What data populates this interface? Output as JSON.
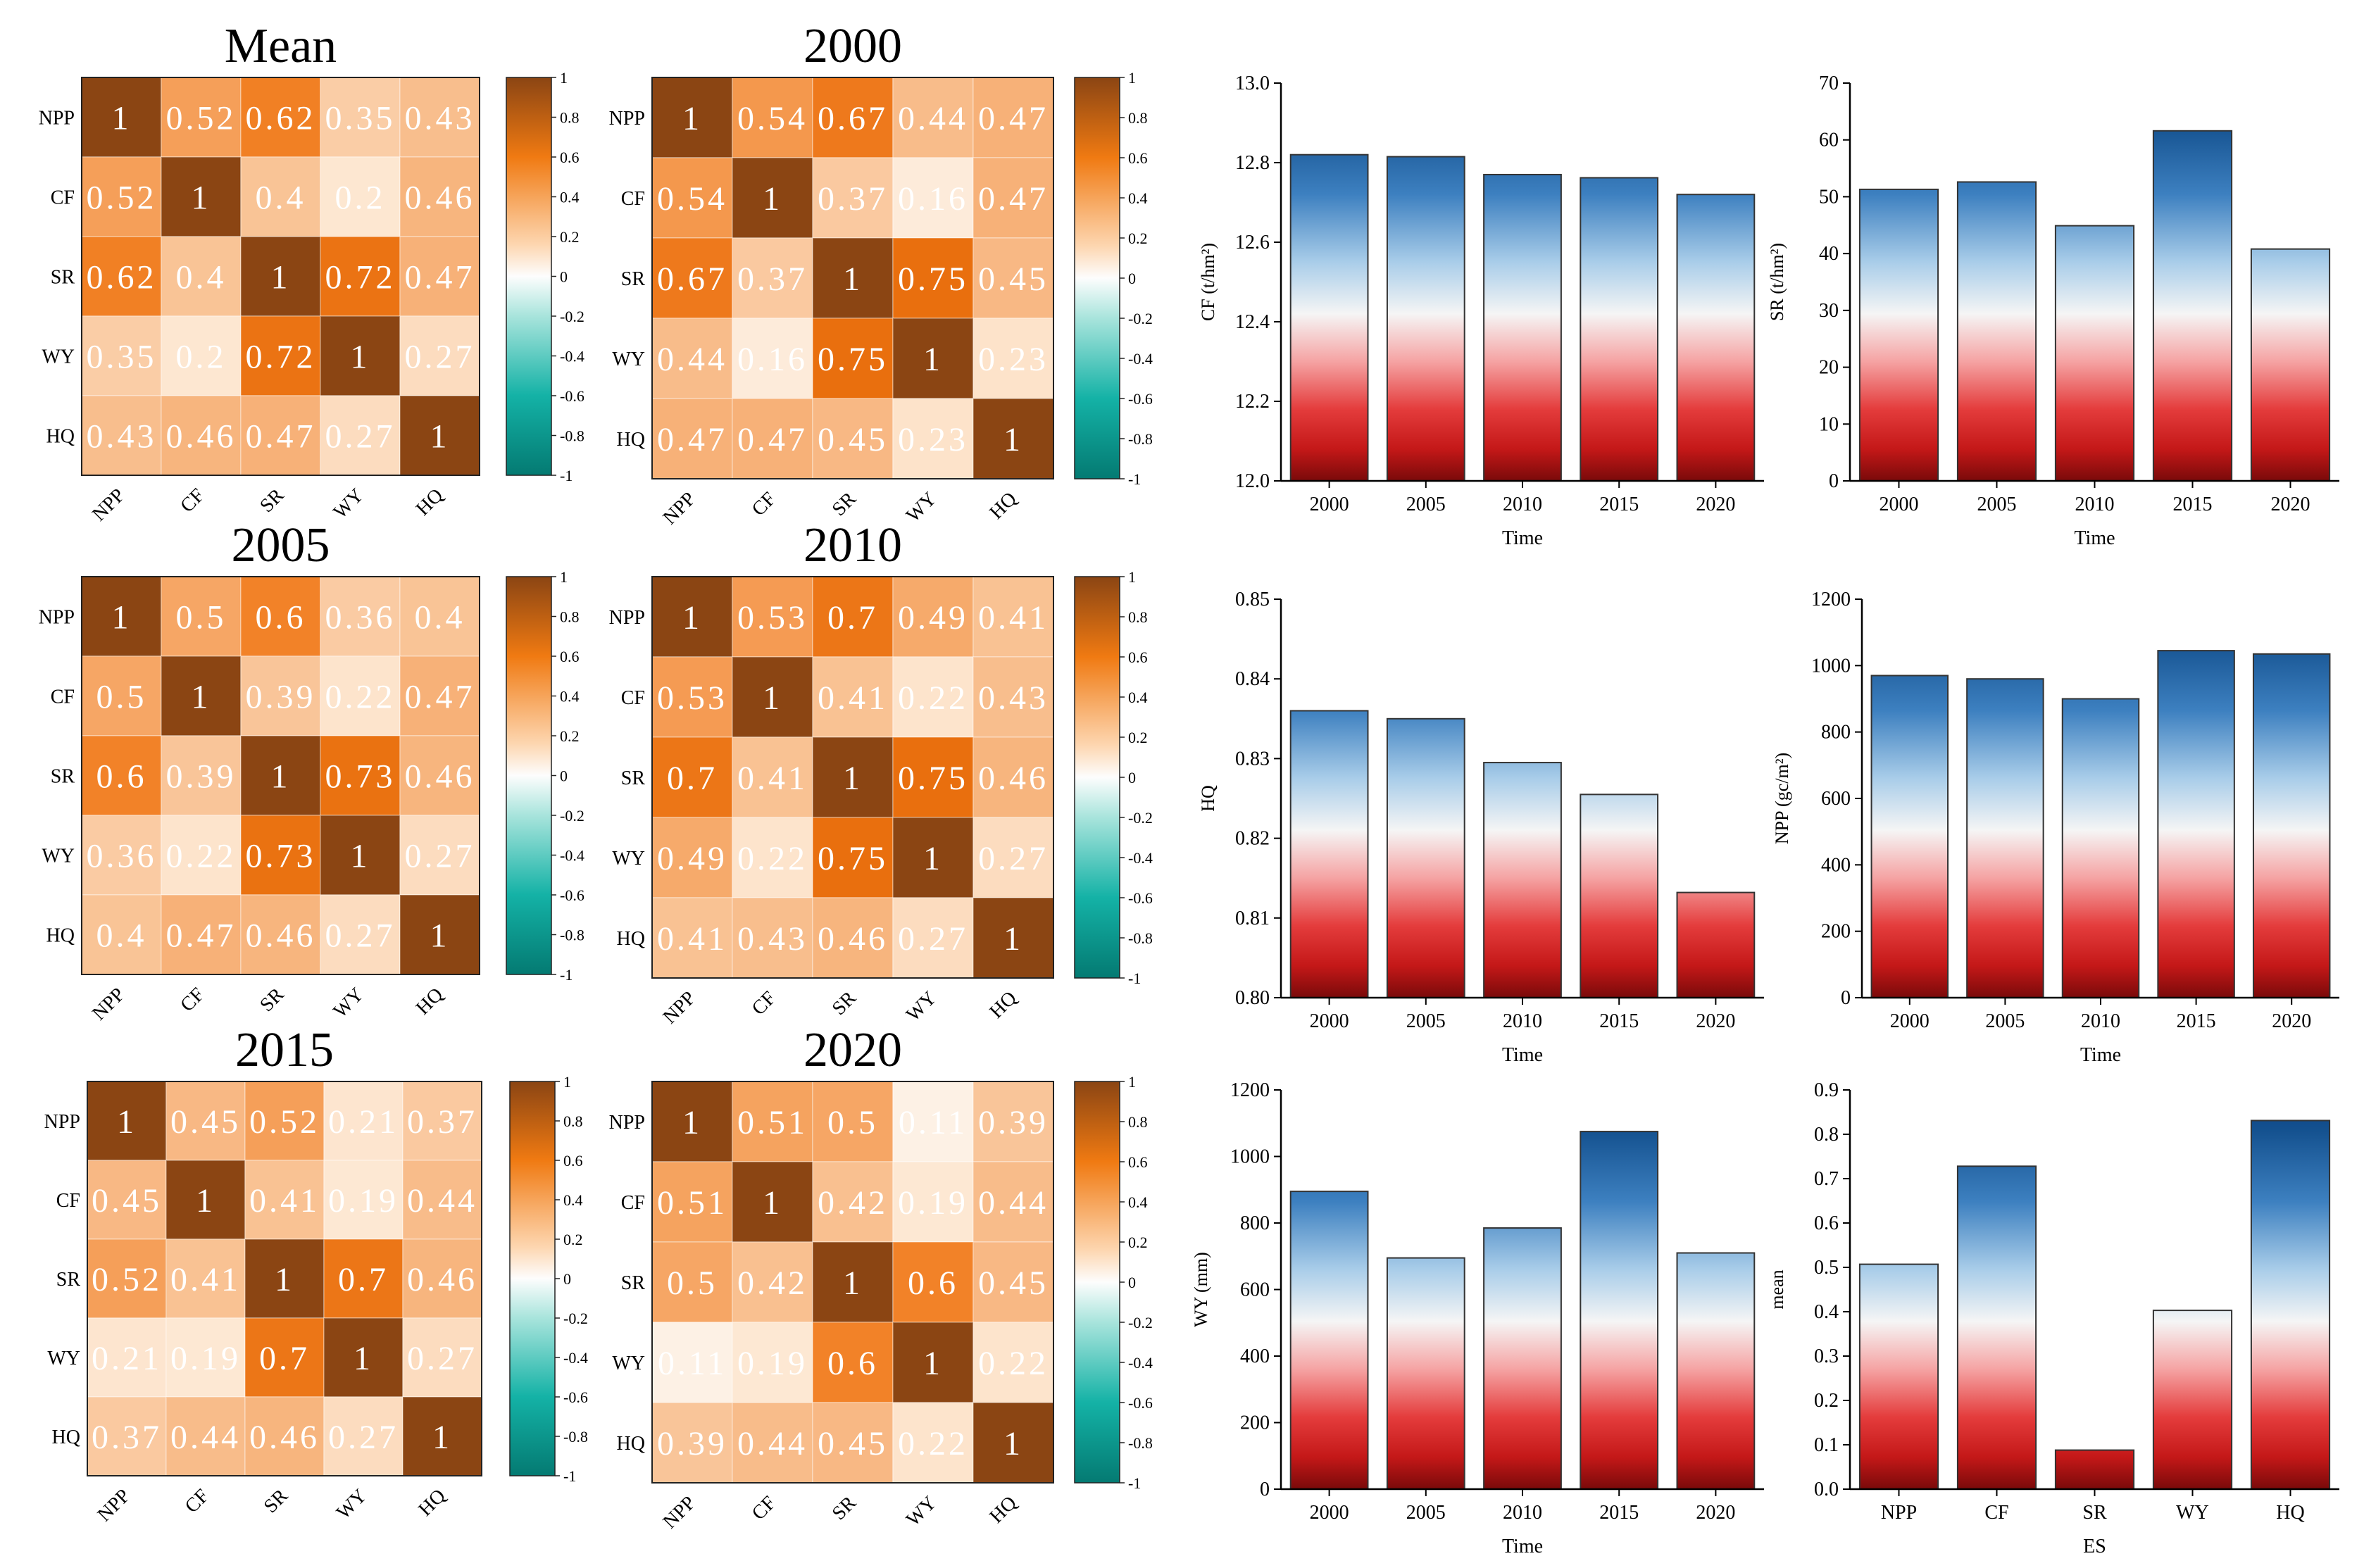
{
  "chart_data": [
    {
      "type": "heatmap",
      "title": "Mean",
      "labels": [
        "NPP",
        "CF",
        "SR",
        "WY",
        "HQ"
      ],
      "matrix": [
        [
          1,
          0.52,
          0.62,
          0.35,
          0.43
        ],
        [
          0.52,
          1,
          0.4,
          0.2,
          0.46
        ],
        [
          0.62,
          0.4,
          1,
          0.72,
          0.47
        ],
        [
          0.35,
          0.2,
          0.72,
          1,
          0.27
        ],
        [
          0.43,
          0.46,
          0.47,
          0.27,
          1
        ]
      ],
      "colorbar": {
        "min": -1,
        "max": 1,
        "ticks": [
          1,
          0.8,
          0.6,
          0.4,
          0.2,
          0,
          -0.2,
          -0.4,
          -0.6,
          -0.8,
          -1
        ]
      }
    },
    {
      "type": "heatmap",
      "title": "2000",
      "labels": [
        "NPP",
        "CF",
        "SR",
        "WY",
        "HQ"
      ],
      "matrix": [
        [
          1,
          0.54,
          0.67,
          0.44,
          0.47
        ],
        [
          0.54,
          1,
          0.37,
          0.16,
          0.47
        ],
        [
          0.67,
          0.37,
          1,
          0.75,
          0.45
        ],
        [
          0.44,
          0.16,
          0.75,
          1,
          0.23
        ],
        [
          0.47,
          0.47,
          0.45,
          0.23,
          1
        ]
      ],
      "colorbar": {
        "min": -1,
        "max": 1,
        "ticks": [
          1,
          0.8,
          0.6,
          0.4,
          0.2,
          0,
          -0.2,
          -0.4,
          -0.6,
          -0.8,
          -1
        ]
      }
    },
    {
      "type": "heatmap",
      "title": "2005",
      "labels": [
        "NPP",
        "CF",
        "SR",
        "WY",
        "HQ"
      ],
      "matrix": [
        [
          1,
          0.5,
          0.6,
          0.36,
          0.4
        ],
        [
          0.5,
          1,
          0.39,
          0.22,
          0.47
        ],
        [
          0.6,
          0.39,
          1,
          0.73,
          0.46
        ],
        [
          0.36,
          0.22,
          0.73,
          1,
          0.27
        ],
        [
          0.4,
          0.47,
          0.46,
          0.27,
          1
        ]
      ],
      "colorbar": {
        "min": -1,
        "max": 1,
        "ticks": [
          1,
          0.8,
          0.6,
          0.4,
          0.2,
          0,
          -0.2,
          -0.4,
          -0.6,
          -0.8,
          -1
        ]
      }
    },
    {
      "type": "heatmap",
      "title": "2010",
      "labels": [
        "NPP",
        "CF",
        "SR",
        "WY",
        "HQ"
      ],
      "matrix": [
        [
          1,
          0.53,
          0.7,
          0.49,
          0.41
        ],
        [
          0.53,
          1,
          0.41,
          0.22,
          0.43
        ],
        [
          0.7,
          0.41,
          1,
          0.75,
          0.46
        ],
        [
          0.49,
          0.22,
          0.75,
          1,
          0.27
        ],
        [
          0.41,
          0.43,
          0.46,
          0.27,
          1
        ]
      ],
      "colorbar": {
        "min": -1,
        "max": 1,
        "ticks": [
          1,
          0.8,
          0.6,
          0.4,
          0.2,
          0,
          -0.2,
          -0.4,
          -0.6,
          -0.8,
          -1
        ]
      }
    },
    {
      "type": "heatmap",
      "title": "2015",
      "labels": [
        "NPP",
        "CF",
        "SR",
        "WY",
        "HQ"
      ],
      "matrix": [
        [
          1,
          0.45,
          0.52,
          0.21,
          0.37
        ],
        [
          0.45,
          1,
          0.41,
          0.19,
          0.44
        ],
        [
          0.52,
          0.41,
          1,
          0.7,
          0.46
        ],
        [
          0.21,
          0.19,
          0.7,
          1,
          0.27
        ],
        [
          0.37,
          0.44,
          0.46,
          0.27,
          1
        ]
      ],
      "colorbar": {
        "min": -1,
        "max": 1,
        "ticks": [
          1,
          0.8,
          0.6,
          0.4,
          0.2,
          0,
          -0.2,
          -0.4,
          -0.6,
          -0.8,
          -1
        ]
      }
    },
    {
      "type": "heatmap",
      "title": "2020",
      "labels": [
        "NPP",
        "CF",
        "SR",
        "WY",
        "HQ"
      ],
      "matrix": [
        [
          1,
          0.51,
          0.5,
          0.11,
          0.39
        ],
        [
          0.51,
          1,
          0.42,
          0.19,
          0.44
        ],
        [
          0.5,
          0.42,
          1,
          0.6,
          0.45
        ],
        [
          0.11,
          0.19,
          0.6,
          1,
          0.22
        ],
        [
          0.39,
          0.44,
          0.45,
          0.22,
          1
        ]
      ],
      "colorbar": {
        "min": -1,
        "max": 1,
        "ticks": [
          1,
          0.8,
          0.6,
          0.4,
          0.2,
          0,
          -0.2,
          -0.4,
          -0.6,
          -0.8,
          -1
        ]
      }
    },
    {
      "type": "bar",
      "categories": [
        "2000",
        "2005",
        "2010",
        "2015",
        "2020"
      ],
      "values": [
        12.82,
        12.815,
        12.77,
        12.762,
        12.72
      ],
      "xlabel": "Time",
      "ylabel": "CF (t/hm²)",
      "ylim": [
        12.0,
        13.0
      ],
      "yticks": [
        "12.0",
        "12.2",
        "12.4",
        "12.6",
        "12.8",
        "13.0"
      ]
    },
    {
      "type": "bar",
      "categories": [
        "2000",
        "2005",
        "2010",
        "2015",
        "2020"
      ],
      "values": [
        51.3,
        52.6,
        44.9,
        61.6,
        40.8
      ],
      "xlabel": "Time",
      "ylabel": "SR (t/hm²)",
      "ylim": [
        0,
        70
      ],
      "yticks": [
        "0",
        "10",
        "20",
        "30",
        "40",
        "50",
        "60",
        "70"
      ]
    },
    {
      "type": "bar",
      "categories": [
        "2000",
        "2005",
        "2010",
        "2015",
        "2020"
      ],
      "values": [
        0.836,
        0.835,
        0.8295,
        0.8255,
        0.8132
      ],
      "xlabel": "Time",
      "ylabel": "HQ",
      "ylim": [
        0.8,
        0.85
      ],
      "yticks": [
        "0.80",
        "0.81",
        "0.82",
        "0.83",
        "0.84",
        "0.85"
      ]
    },
    {
      "type": "bar",
      "categories": [
        "2000",
        "2005",
        "2010",
        "2015",
        "2020"
      ],
      "values": [
        970,
        960,
        900,
        1045,
        1035
      ],
      "xlabel": "Time",
      "ylabel": "NPP (gc/m²)",
      "ylim": [
        0,
        1200
      ],
      "yticks": [
        "0",
        "200",
        "400",
        "600",
        "800",
        "1000",
        "1200"
      ]
    },
    {
      "type": "bar",
      "categories": [
        "2000",
        "2005",
        "2010",
        "2015",
        "2020"
      ],
      "values": [
        895,
        695,
        785,
        1075,
        710
      ],
      "xlabel": "Time",
      "ylabel": "WY (mm)",
      "ylim": [
        0,
        1200
      ],
      "yticks": [
        "0",
        "200",
        "400",
        "600",
        "800",
        "1000",
        "1200"
      ]
    },
    {
      "type": "bar",
      "categories": [
        "NPP",
        "CF",
        "SR",
        "WY",
        "HQ"
      ],
      "values": [
        0.507,
        0.728,
        0.088,
        0.403,
        0.831
      ],
      "xlabel": "ES",
      "ylabel": "mean",
      "ylim": [
        0,
        0.9
      ],
      "yticks": [
        "0.0",
        "0.1",
        "0.2",
        "0.3",
        "0.4",
        "0.5",
        "0.6",
        "0.7",
        "0.8",
        "0.9"
      ]
    }
  ]
}
